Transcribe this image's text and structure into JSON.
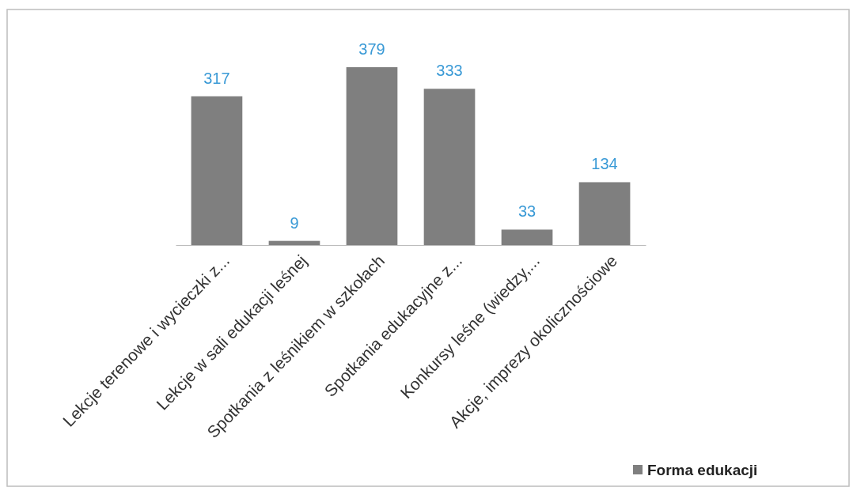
{
  "chart_data": {
    "type": "bar",
    "categories": [
      "Lekcje terenowe i wycieczki z...",
      "Lekcje w sali edukacji leśnej",
      "Spotkania z leśnikiem w szkołach",
      "Spotkania edukacyjne z...",
      "Konkursy leśne (wiedzy,...",
      "Akcje, imprezy okolicznościowe"
    ],
    "series": [
      {
        "name": "Forma edukacji",
        "color": "#7f7f7f",
        "values": [
          317,
          9,
          379,
          333,
          33,
          134
        ]
      }
    ],
    "data_labels": true,
    "legend": "bottom right"
  }
}
